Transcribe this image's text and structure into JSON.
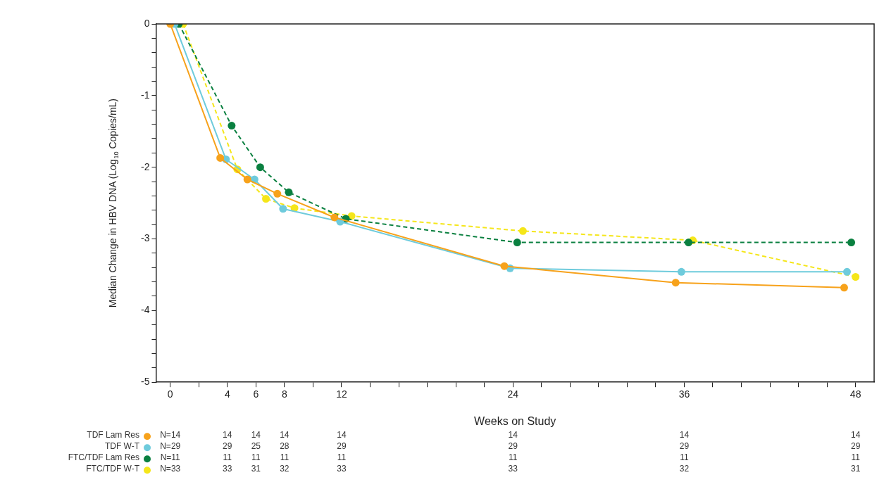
{
  "chart_data": {
    "type": "line",
    "xlabel": "Weeks on Study",
    "ylabel": "Median Change in HBV DNA (Log$_{10}$ Copies/mL)",
    "xlim": [
      -1,
      49.3
    ],
    "ylim": [
      -5,
      0
    ],
    "xticks": [
      0,
      {
        "value": 2,
        "label": null
      },
      4,
      6,
      8,
      {
        "value": 10,
        "label": null
      },
      12,
      {
        "value": 14,
        "label": null
      },
      {
        "value": 16,
        "label": null
      },
      {
        "value": 18,
        "label": null
      },
      {
        "value": 20,
        "label": null
      },
      {
        "value": 22,
        "label": null
      },
      24,
      {
        "value": 26,
        "label": null
      },
      {
        "value": 28,
        "label": null
      },
      {
        "value": 30,
        "label": null
      },
      {
        "value": 32,
        "label": null
      },
      {
        "value": 34,
        "label": null
      },
      36,
      {
        "value": 38,
        "label": null
      },
      {
        "value": 40,
        "label": null
      },
      {
        "value": 42,
        "label": null
      },
      {
        "value": 44,
        "label": null
      },
      {
        "value": 46,
        "label": null
      },
      48
    ],
    "yticks": [
      -5,
      {
        "value": -4.8,
        "label": null
      },
      {
        "value": -4.6,
        "label": null
      },
      {
        "value": -4.4,
        "label": null
      },
      {
        "value": -4.2,
        "label": null
      },
      -4,
      {
        "value": -3.8,
        "label": null
      },
      {
        "value": -3.6,
        "label": null
      },
      {
        "value": -3.4,
        "label": null
      },
      {
        "value": -3.2,
        "label": null
      },
      -3,
      {
        "value": -2.8,
        "label": null
      },
      {
        "value": -2.6,
        "label": null
      },
      {
        "value": -2.4,
        "label": null
      },
      {
        "value": -2.2,
        "label": null
      },
      -2,
      {
        "value": -1.8,
        "label": null
      },
      {
        "value": -1.6,
        "label": null
      },
      {
        "value": -1.4,
        "label": null
      },
      {
        "value": -1.2,
        "label": null
      },
      -1,
      {
        "value": -0.8,
        "label": null
      },
      {
        "value": -0.6,
        "label": null
      },
      {
        "value": -0.4,
        "label": null
      },
      {
        "value": -0.2,
        "label": null
      },
      0
    ],
    "grid": false,
    "legend": "bottom left",
    "marker": "circle",
    "series": [
      {
        "name": "TDF Lam Res",
        "color": "#f7a21b",
        "line_style": "solid",
        "x": [
          0,
          3.5,
          5.4,
          7.5,
          11.5,
          23.4,
          35.4,
          47.2
        ],
        "values": [
          0,
          -1.87,
          -2.17,
          -2.37,
          -2.7,
          -3.38,
          -3.61,
          -3.68
        ]
      },
      {
        "name": "TDF W-T",
        "color": "#6ecbdc",
        "line_style": "solid",
        "x": [
          0.3,
          3.9,
          5.9,
          7.9,
          11.9,
          23.8,
          35.8,
          47.4
        ],
        "values": [
          0,
          -1.89,
          -2.17,
          -2.58,
          -2.76,
          -3.41,
          -3.46,
          -3.46
        ]
      },
      {
        "name": "FTC/TDF Lam Res",
        "color": "#0a8040",
        "line_style": "dashed",
        "x": [
          0.6,
          4.3,
          6.3,
          8.3,
          12.3,
          24.3,
          36.3,
          47.7
        ],
        "values": [
          0,
          -1.42,
          -2.0,
          -2.35,
          -2.72,
          -3.05,
          -3.05,
          -3.05
        ]
      },
      {
        "name": "FTC/TDF W-T",
        "color": "#f5e61a",
        "line_style": "dashed",
        "x": [
          0.9,
          4.7,
          6.7,
          8.7,
          12.7,
          24.7,
          36.6,
          48
        ],
        "values": [
          0,
          -2.03,
          -2.44,
          -2.57,
          -2.68,
          -2.89,
          -3.02,
          -3.53
        ]
      }
    ],
    "annotations": [
      "N=14",
      "14",
      "14",
      "14",
      "14",
      "14",
      "14",
      "14",
      "N=29",
      "29",
      "25",
      "28",
      "29",
      "29",
      "29",
      "29",
      "N=11",
      "11",
      "11",
      "11",
      "11",
      "11",
      "11",
      "11",
      "N=33",
      "33",
      "31",
      "32",
      "33",
      "33",
      "32",
      "31"
    ]
  }
}
